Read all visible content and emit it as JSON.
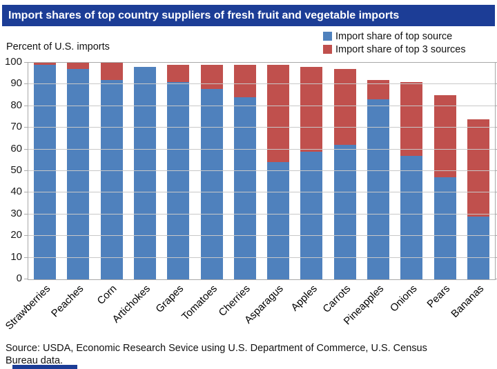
{
  "title_bar": {
    "text": "Import shares of top country suppliers of fresh fruit and vegetable imports"
  },
  "axis_note": "Percent of U.S. imports",
  "colors": {
    "banner_blue": "#1c3d96",
    "bar_blue": "#4f81bd",
    "bar_red": "#c0504d",
    "gridline": "#c8c8c8",
    "plot_border": "#a8a8a8"
  },
  "chart_data": {
    "type": "bar",
    "stacked": true,
    "title": "Import shares of top country suppliers of fresh fruit and vegetable imports",
    "ylabel": "Percent of U.S. imports",
    "categories": [
      "Strawberries",
      "Peaches",
      "Corn",
      "Artichokes",
      "Grapes",
      "Tomatoes",
      "Cherries",
      "Asparagus",
      "Apples",
      "Carrots",
      "Pineapples",
      "Onions",
      "Pears",
      "Bananas"
    ],
    "series": [
      {
        "name": "Import share of top source",
        "color": "#4f81bd",
        "values": [
          99,
          97,
          92,
          98,
          91,
          88,
          84,
          54,
          59,
          62,
          83,
          57,
          47,
          29
        ]
      },
      {
        "name": "Import share of top 3 sources",
        "color": "#c0504d",
        "values": [
          100,
          100,
          100,
          98,
          99,
          99,
          99,
          99,
          98,
          97,
          92,
          91,
          85,
          74
        ]
      }
    ],
    "ylim": [
      0,
      100
    ],
    "ytick_step": 10,
    "grid": true,
    "legend_position": "top-right"
  },
  "source": {
    "line1": "Source: USDA, Economic Research Sevice using U.S. Department of Commerce, U.S. Census",
    "line2": "Bureau data."
  }
}
